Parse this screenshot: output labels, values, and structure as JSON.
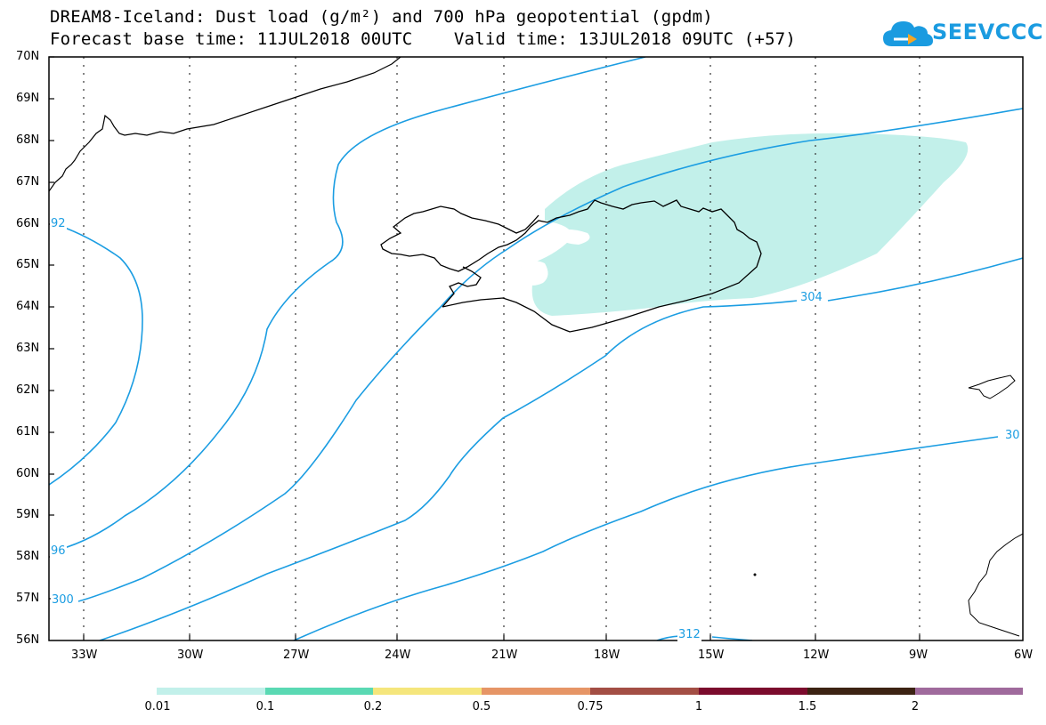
{
  "title": {
    "line1": "DREAM8-Iceland: Dust load (g/m²) and 700 hPa geopotential (gpdm)",
    "line2": "Forecast base time: 11JUL2018 00UTC    Valid time: 13JUL2018 09UTC (+57)"
  },
  "logo": {
    "text": "SEEVCCC",
    "icon": "cloud-icon"
  },
  "map": {
    "lat_labels": [
      "70N",
      "69N",
      "68N",
      "67N",
      "66N",
      "65N",
      "64N",
      "63N",
      "62N",
      "61N",
      "60N",
      "59N",
      "58N",
      "57N",
      "56N"
    ],
    "lon_labels": [
      "33W",
      "30W",
      "27W",
      "24W",
      "21W",
      "18W",
      "15W",
      "12W",
      "9W",
      "6W"
    ],
    "contour_labels": [
      "92",
      "96",
      "300",
      "304",
      "30",
      "312"
    ],
    "colors": {
      "contour": "#1b9de2",
      "coast": "#000000",
      "dust_fill": "#c2f0ea"
    }
  },
  "colorbar": {
    "labels": [
      "0.01",
      "0.1",
      "0.2",
      "0.5",
      "0.75",
      "1",
      "1.5",
      "2"
    ],
    "colors": [
      "#c2f0ea",
      "#5ad9b3",
      "#f5e67c",
      "#e69566",
      "#a34e44",
      "#7b0b2d",
      "#3c2313",
      "#9f6a9c"
    ]
  }
}
